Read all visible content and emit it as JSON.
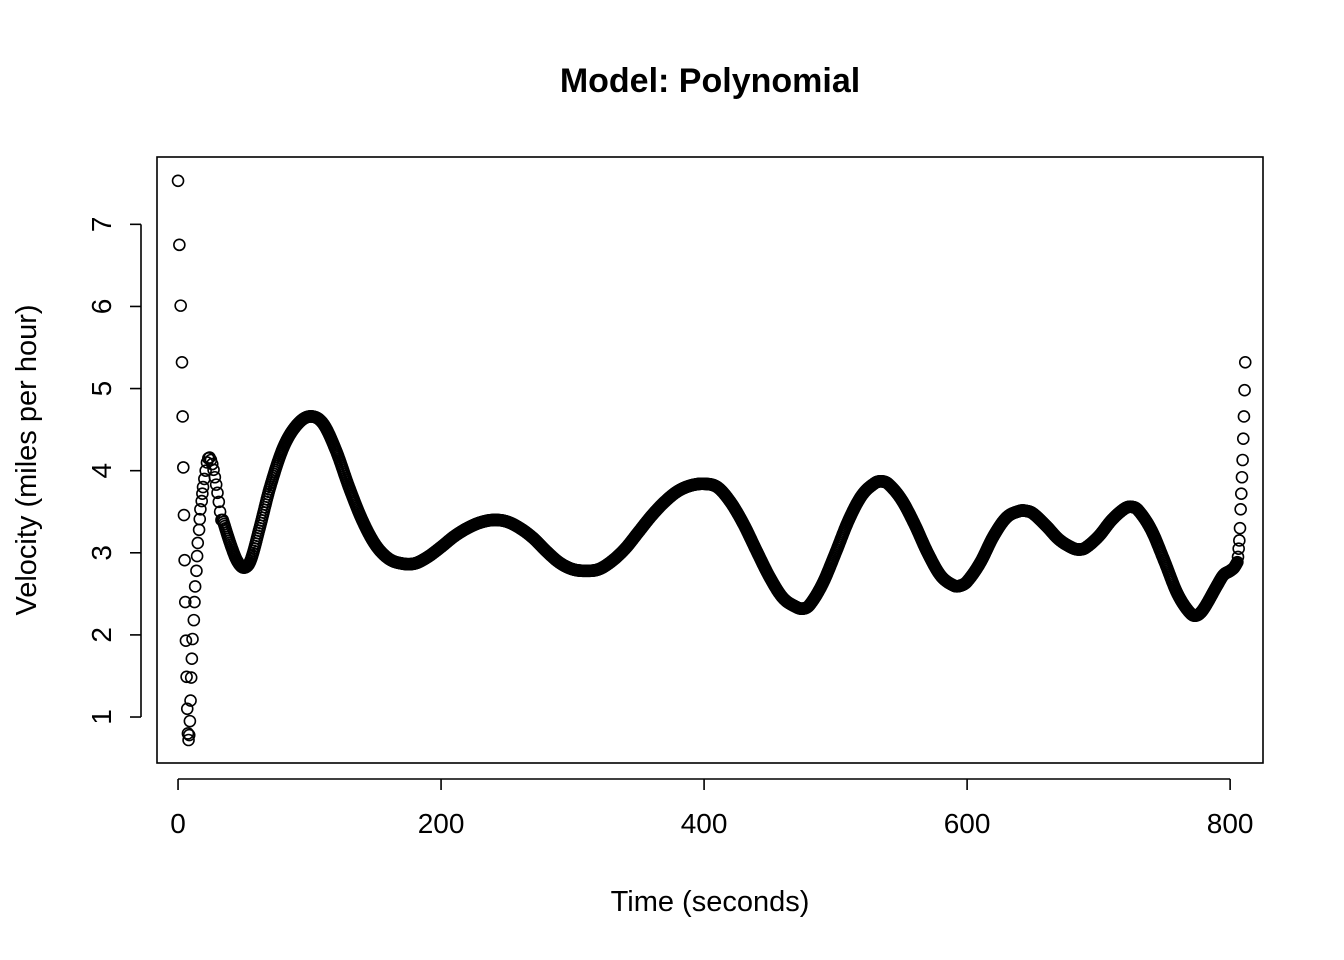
{
  "chart_data": {
    "type": "scatter",
    "title": "Model: Polynomial",
    "xlabel": "Time (seconds)",
    "ylabel": "Velocity (miles per hour)",
    "xlim": [
      -16,
      825
    ],
    "ylim": [
      0.44,
      7.82
    ],
    "xticks": [
      0,
      200,
      400,
      600,
      800
    ],
    "yticks": [
      1,
      2,
      3,
      4,
      5,
      6,
      7
    ],
    "grid": false,
    "legend": "none",
    "point_style": "open-circle",
    "series": [
      {
        "points": [
          [
            0,
            7.53
          ],
          [
            1,
            6.75
          ],
          [
            2,
            6.01
          ],
          [
            3,
            5.32
          ],
          [
            3.5,
            4.66
          ],
          [
            4,
            4.04
          ],
          [
            4.5,
            3.46
          ],
          [
            5,
            2.91
          ],
          [
            5.5,
            2.4
          ],
          [
            6,
            1.93
          ],
          [
            6.5,
            1.49
          ],
          [
            7,
            1.1
          ],
          [
            7.5,
            0.8
          ],
          [
            8,
            0.72
          ],
          [
            8.5,
            0.78
          ],
          [
            9,
            0.95
          ],
          [
            9.5,
            1.2
          ],
          [
            10,
            1.48
          ],
          [
            10.5,
            1.71
          ],
          [
            11,
            1.95
          ],
          [
            12,
            2.18
          ],
          [
            12.5,
            2.4
          ],
          [
            13,
            2.59
          ],
          [
            14,
            2.78
          ],
          [
            14.5,
            2.96
          ],
          [
            15,
            3.12
          ],
          [
            16,
            3.28
          ],
          [
            16.5,
            3.41
          ],
          [
            17,
            3.53
          ],
          [
            18,
            3.63
          ],
          [
            18.5,
            3.72
          ],
          [
            19,
            3.8
          ],
          [
            20,
            3.9
          ],
          [
            21,
            4.0
          ],
          [
            22,
            4.1
          ],
          [
            23,
            4.15
          ],
          [
            24,
            4.16
          ],
          [
            25,
            4.13
          ],
          [
            26,
            4.08
          ],
          [
            27,
            4.01
          ],
          [
            28,
            3.92
          ],
          [
            29,
            3.83
          ],
          [
            30,
            3.73
          ],
          [
            31,
            3.62
          ],
          [
            32,
            3.5
          ],
          [
            33,
            3.4
          ],
          [
            806,
            2.95
          ],
          [
            806.5,
            3.05
          ],
          [
            807,
            3.15
          ],
          [
            807.5,
            3.3
          ],
          [
            808,
            3.53
          ],
          [
            808.5,
            3.72
          ],
          [
            809,
            3.92
          ],
          [
            809.5,
            4.13
          ],
          [
            810,
            4.39
          ],
          [
            810.5,
            4.66
          ],
          [
            811,
            4.98
          ],
          [
            811.5,
            5.32
          ]
        ]
      }
    ],
    "fitted_curve_knots": [
      [
        34,
        3.4
      ],
      [
        40,
        3.1
      ],
      [
        45,
        2.9
      ],
      [
        50,
        2.82
      ],
      [
        55,
        2.9
      ],
      [
        62,
        3.3
      ],
      [
        70,
        3.8
      ],
      [
        80,
        4.28
      ],
      [
        90,
        4.55
      ],
      [
        100,
        4.66
      ],
      [
        110,
        4.58
      ],
      [
        120,
        4.25
      ],
      [
        130,
        3.8
      ],
      [
        140,
        3.4
      ],
      [
        150,
        3.1
      ],
      [
        160,
        2.93
      ],
      [
        170,
        2.87
      ],
      [
        180,
        2.87
      ],
      [
        190,
        2.95
      ],
      [
        200,
        3.07
      ],
      [
        210,
        3.2
      ],
      [
        220,
        3.3
      ],
      [
        230,
        3.37
      ],
      [
        240,
        3.4
      ],
      [
        250,
        3.38
      ],
      [
        260,
        3.3
      ],
      [
        270,
        3.18
      ],
      [
        280,
        3.02
      ],
      [
        290,
        2.88
      ],
      [
        300,
        2.8
      ],
      [
        310,
        2.78
      ],
      [
        320,
        2.8
      ],
      [
        330,
        2.9
      ],
      [
        340,
        3.05
      ],
      [
        350,
        3.25
      ],
      [
        360,
        3.45
      ],
      [
        370,
        3.62
      ],
      [
        380,
        3.75
      ],
      [
        390,
        3.82
      ],
      [
        400,
        3.84
      ],
      [
        410,
        3.8
      ],
      [
        420,
        3.62
      ],
      [
        430,
        3.35
      ],
      [
        440,
        3.02
      ],
      [
        450,
        2.7
      ],
      [
        460,
        2.45
      ],
      [
        470,
        2.34
      ],
      [
        475,
        2.32
      ],
      [
        480,
        2.36
      ],
      [
        490,
        2.62
      ],
      [
        500,
        3.0
      ],
      [
        510,
        3.4
      ],
      [
        520,
        3.7
      ],
      [
        530,
        3.85
      ],
      [
        535,
        3.87
      ],
      [
        540,
        3.84
      ],
      [
        550,
        3.65
      ],
      [
        560,
        3.35
      ],
      [
        570,
        3.0
      ],
      [
        580,
        2.72
      ],
      [
        590,
        2.6
      ],
      [
        595,
        2.6
      ],
      [
        600,
        2.65
      ],
      [
        610,
        2.88
      ],
      [
        620,
        3.2
      ],
      [
        630,
        3.43
      ],
      [
        640,
        3.51
      ],
      [
        645,
        3.51
      ],
      [
        650,
        3.48
      ],
      [
        660,
        3.33
      ],
      [
        670,
        3.16
      ],
      [
        680,
        3.06
      ],
      [
        685,
        3.04
      ],
      [
        690,
        3.06
      ],
      [
        700,
        3.2
      ],
      [
        710,
        3.4
      ],
      [
        720,
        3.54
      ],
      [
        725,
        3.56
      ],
      [
        730,
        3.52
      ],
      [
        740,
        3.28
      ],
      [
        750,
        2.9
      ],
      [
        760,
        2.5
      ],
      [
        770,
        2.26
      ],
      [
        775,
        2.24
      ],
      [
        780,
        2.32
      ],
      [
        790,
        2.6
      ],
      [
        795,
        2.73
      ],
      [
        800,
        2.78
      ],
      [
        803,
        2.82
      ],
      [
        806,
        2.9
      ]
    ]
  }
}
